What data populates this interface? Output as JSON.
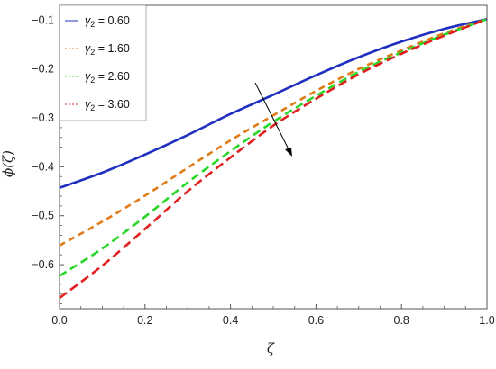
{
  "chart_data": {
    "type": "line",
    "title": "",
    "xlabel": "ζ",
    "ylabel": "ϕ(ζ)",
    "xlim": [
      0.0,
      1.0
    ],
    "ylim": [
      -0.69,
      -0.07
    ],
    "xticks": [
      "0.0",
      "0.2",
      "0.4",
      "0.6",
      "0.8",
      "1.0"
    ],
    "yticks": [
      "-0.6",
      "-0.5",
      "-0.4",
      "-0.3",
      "-0.2",
      "-0.1"
    ],
    "legend_position": "top-left",
    "series": [
      {
        "name": "γ2 = 0.60",
        "color": "#1f2fbf",
        "dash": "solid",
        "x": [
          0.0,
          0.1,
          0.2,
          0.3,
          0.4,
          0.5,
          0.6,
          0.7,
          0.8,
          0.9,
          1.0
        ],
        "y": [
          -0.443,
          -0.412,
          -0.375,
          -0.335,
          -0.292,
          -0.253,
          -0.213,
          -0.176,
          -0.144,
          -0.118,
          -0.098
        ]
      },
      {
        "name": "γ2 = 1.60",
        "color": "#e07b16",
        "dash": "dashed",
        "x": [
          0.0,
          0.1,
          0.2,
          0.3,
          0.4,
          0.5,
          0.6,
          0.7,
          0.8,
          0.9,
          1.0
        ],
        "y": [
          -0.561,
          -0.512,
          -0.459,
          -0.402,
          -0.346,
          -0.295,
          -0.245,
          -0.2,
          -0.162,
          -0.127,
          -0.098
        ]
      },
      {
        "name": "γ2 = 2.60",
        "color": "#27d627",
        "dash": "dashed",
        "x": [
          0.0,
          0.1,
          0.2,
          0.3,
          0.4,
          0.5,
          0.6,
          0.7,
          0.8,
          0.9,
          1.0
        ],
        "y": [
          -0.623,
          -0.567,
          -0.502,
          -0.432,
          -0.368,
          -0.308,
          -0.255,
          -0.206,
          -0.166,
          -0.13,
          -0.098
        ]
      },
      {
        "name": "γ2 = 3.60",
        "color": "#e02020",
        "dash": "dashed",
        "x": [
          0.0,
          0.1,
          0.2,
          0.3,
          0.4,
          0.5,
          0.6,
          0.7,
          0.8,
          0.9,
          1.0
        ],
        "y": [
          -0.668,
          -0.602,
          -0.527,
          -0.45,
          -0.381,
          -0.316,
          -0.261,
          -0.211,
          -0.169,
          -0.132,
          -0.098
        ]
      }
    ]
  }
}
